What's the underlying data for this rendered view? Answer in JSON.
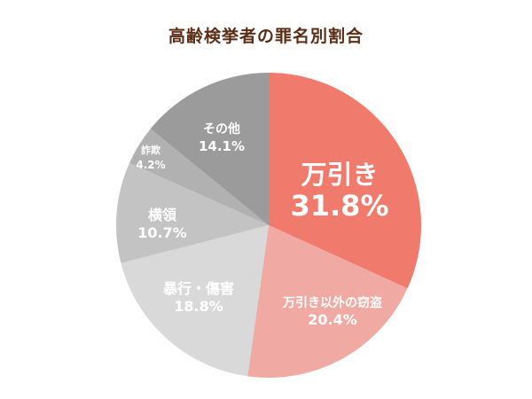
{
  "chart_data": {
    "type": "pie",
    "title": "高齢検挙者の罪名別割合",
    "slices": [
      {
        "label": "万引き",
        "value": 31.8,
        "value_text": "31.8%",
        "color": "#f07a6b"
      },
      {
        "label": "万引き以外の窃盗",
        "value": 20.4,
        "value_text": "20.4%",
        "color": "#f0aaa3"
      },
      {
        "label": "暴行・傷害",
        "value": 18.8,
        "value_text": "18.8%",
        "color": "#d9d9d9"
      },
      {
        "label": "横領",
        "value": 10.7,
        "value_text": "10.7%",
        "color": "#c3c3c3"
      },
      {
        "label": "詐欺",
        "value": 4.2,
        "value_text": "4.2%",
        "color": "#b1b1b1"
      },
      {
        "label": "その他",
        "value": 14.1,
        "value_text": "14.1%",
        "color": "#9b9b9b"
      }
    ],
    "start": "12 o'clock",
    "direction": "clockwise"
  }
}
